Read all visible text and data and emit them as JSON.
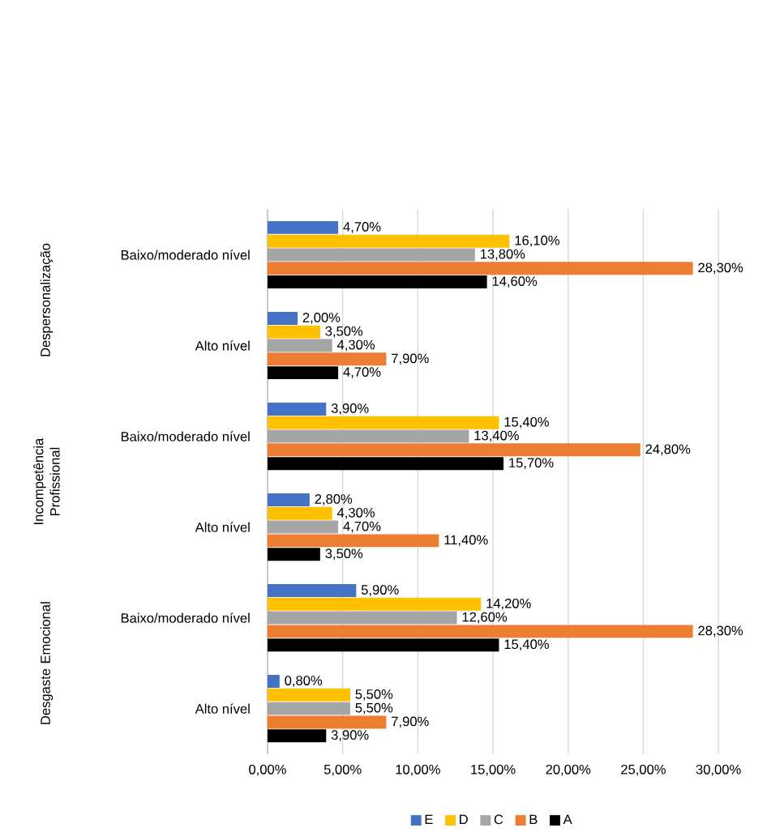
{
  "chart_data": {
    "type": "bar",
    "orientation": "horizontal",
    "categories": [
      "Baixo/moderado nível",
      "Alto nível",
      "Baixo/moderado nível",
      "Alto nível",
      "Baixo/moderado nível",
      "Alto nível"
    ],
    "annotations": [
      "Despersonalização",
      "Incompetência Profissional",
      "Desgaste Emocional"
    ],
    "series": [
      {
        "name": "E",
        "color": "#4472c4",
        "values": [
          4.7,
          2.0,
          3.9,
          2.8,
          5.9,
          0.8
        ],
        "value_labels": [
          "4,70%",
          "2,00%",
          "3,90%",
          "2,80%",
          "5,90%",
          "0,80%"
        ]
      },
      {
        "name": "D",
        "color": "#ffc000",
        "values": [
          16.1,
          3.5,
          15.4,
          4.3,
          14.2,
          5.5
        ],
        "value_labels": [
          "16,10%",
          "3,50%",
          "15,40%",
          "4,30%",
          "14,20%",
          "5,50%"
        ]
      },
      {
        "name": "C",
        "color": "#a5a5a5",
        "values": [
          13.8,
          4.3,
          13.4,
          4.7,
          12.6,
          5.5
        ],
        "value_labels": [
          "13,80%",
          "4,30%",
          "13,40%",
          "4,70%",
          "12,60%",
          "5,50%"
        ]
      },
      {
        "name": "B",
        "color": "#ed7d31",
        "values": [
          28.3,
          7.9,
          24.8,
          11.4,
          28.3,
          7.9
        ],
        "value_labels": [
          "28,30%",
          "7,90%",
          "24,80%",
          "11,40%",
          "28,30%",
          "7,90%"
        ]
      },
      {
        "name": "A",
        "color": "#000000",
        "values": [
          14.6,
          4.7,
          15.7,
          3.5,
          15.4,
          3.9
        ],
        "value_labels": [
          "14,60%",
          "4,70%",
          "15,70%",
          "3,50%",
          "15,40%",
          "3,90%"
        ]
      }
    ],
    "xlim": [
      0,
      30
    ],
    "xticks": [
      {
        "value": 0,
        "label": "0,00%"
      },
      {
        "value": 5,
        "label": "5,00%"
      },
      {
        "value": 10,
        "label": "10,00%"
      },
      {
        "value": 15,
        "label": "15,00%"
      },
      {
        "value": 20,
        "label": "20,00%"
      },
      {
        "value": 25,
        "label": "25,00%"
      },
      {
        "value": 30,
        "label": "30,00%"
      }
    ],
    "grid": "x",
    "legend": "bottom"
  }
}
